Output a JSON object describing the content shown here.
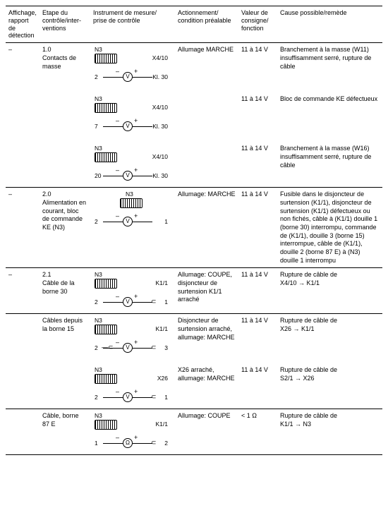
{
  "headers": {
    "affichage": "Affichage, rapport de détection",
    "etape": "Etape du contrôle/inter-ventions",
    "instrument": "Instrument de mesure/ prise de contrôle",
    "action": "Actionnement/ condition préalable",
    "valeur": "Valeur de consigne/ fonction",
    "cause": "Cause possible/remède"
  },
  "rows": [
    {
      "affichage": "–",
      "etape": "1.0\nContacts de masse",
      "subs": [
        {
          "diag": {
            "n3": "N3",
            "left": "2",
            "rightTop": "X4/10",
            "rightBot": "Kl. 30",
            "meter": "V"
          },
          "action": "Allumage MARCHE",
          "valeur": "11 à 14 V",
          "cause": "Branchement à la masse (W11) insuffisamment serré, rupture de câble"
        },
        {
          "diag": {
            "n3": "N3",
            "left": "7",
            "rightTop": "X4/10",
            "rightBot": "Kl. 30",
            "meter": "V"
          },
          "action": "",
          "valeur": "11 à 14 V",
          "cause": "Bloc de commande KE défectueux"
        },
        {
          "diag": {
            "n3": "N3",
            "left": "20",
            "rightTop": "X4/10",
            "rightBot": "Kl. 30",
            "meter": "V"
          },
          "action": "",
          "valeur": "11 à 14 V",
          "cause": "Branchement à la masse (W16) insuffisamment serré, rupture de câble"
        }
      ]
    },
    {
      "affichage": "–",
      "etape": "2.0\nAlimentation en courant, bloc de commande KE (N3)",
      "subs": [
        {
          "diag": {
            "n3": "N3",
            "left": "2",
            "rightTop": "",
            "rightBot": "1",
            "meter": "V",
            "centerModule": true
          },
          "action": "Allumage: MARCHE",
          "valeur": "11 à 14 V",
          "cause": "Fusible dans le disjoncteur de surtension (K1/1), disjoncteur de surtension (K1/1) défectueux ou non fichés, câble à (K1/1) douille 1 (borne 30) interrompu, commande de (K1/1), douille 3 (borne 15) interrompue, câble de (K1/1), douille 2 (borne 87 E) à (N3) douille 1 interrompu"
        }
      ]
    },
    {
      "affichage": "–",
      "etape": "2.1\nCâble de la borne 30",
      "subs": [
        {
          "diag": {
            "n3": "N3",
            "left": "2",
            "rightTop": "K1/1",
            "rightBot": "1",
            "meter": "V",
            "probeR": true
          },
          "action": "Allumage: COUPE, disjoncteur de surtension K1/1 arraché",
          "valeur": "11 à 14 V",
          "cause": "Rupture de câble de\nX4/10 → K1/1"
        }
      ]
    },
    {
      "affichage": "",
      "etape": "Câbles depuis la borne 15",
      "subs": [
        {
          "diag": {
            "n3": "N3",
            "left": "2",
            "rightTop": "K1/1",
            "rightBot": "3",
            "meter": "V",
            "probeR": true,
            "probeL": true
          },
          "action": "Disjoncteur de surtension arraché, allumage: MARCHE",
          "valeur": "11 à 14 V",
          "cause": "Rupture de câble de\nX26 → K1/1"
        },
        {
          "diag": {
            "n3": "N3",
            "left": "2",
            "rightTop": "X26",
            "rightBot": "1",
            "meter": "V",
            "probeR": true
          },
          "action": "X26 arraché, allumage: MARCHE",
          "valeur": "11 à 14 V",
          "cause": "Rupture de câble de\nS2/1 → X26"
        }
      ]
    },
    {
      "affichage": "",
      "etape": "Câble, borne 87 E",
      "subs": [
        {
          "diag": {
            "n3": "N3",
            "left": "1",
            "rightTop": "K1/1",
            "rightBot": "2",
            "meter": "Ω",
            "probeR": true
          },
          "action": "Allumage: COUPE",
          "valeur": "< 1 Ω",
          "cause": "Rupture de câble de\nK1/1 → N3"
        }
      ]
    }
  ]
}
